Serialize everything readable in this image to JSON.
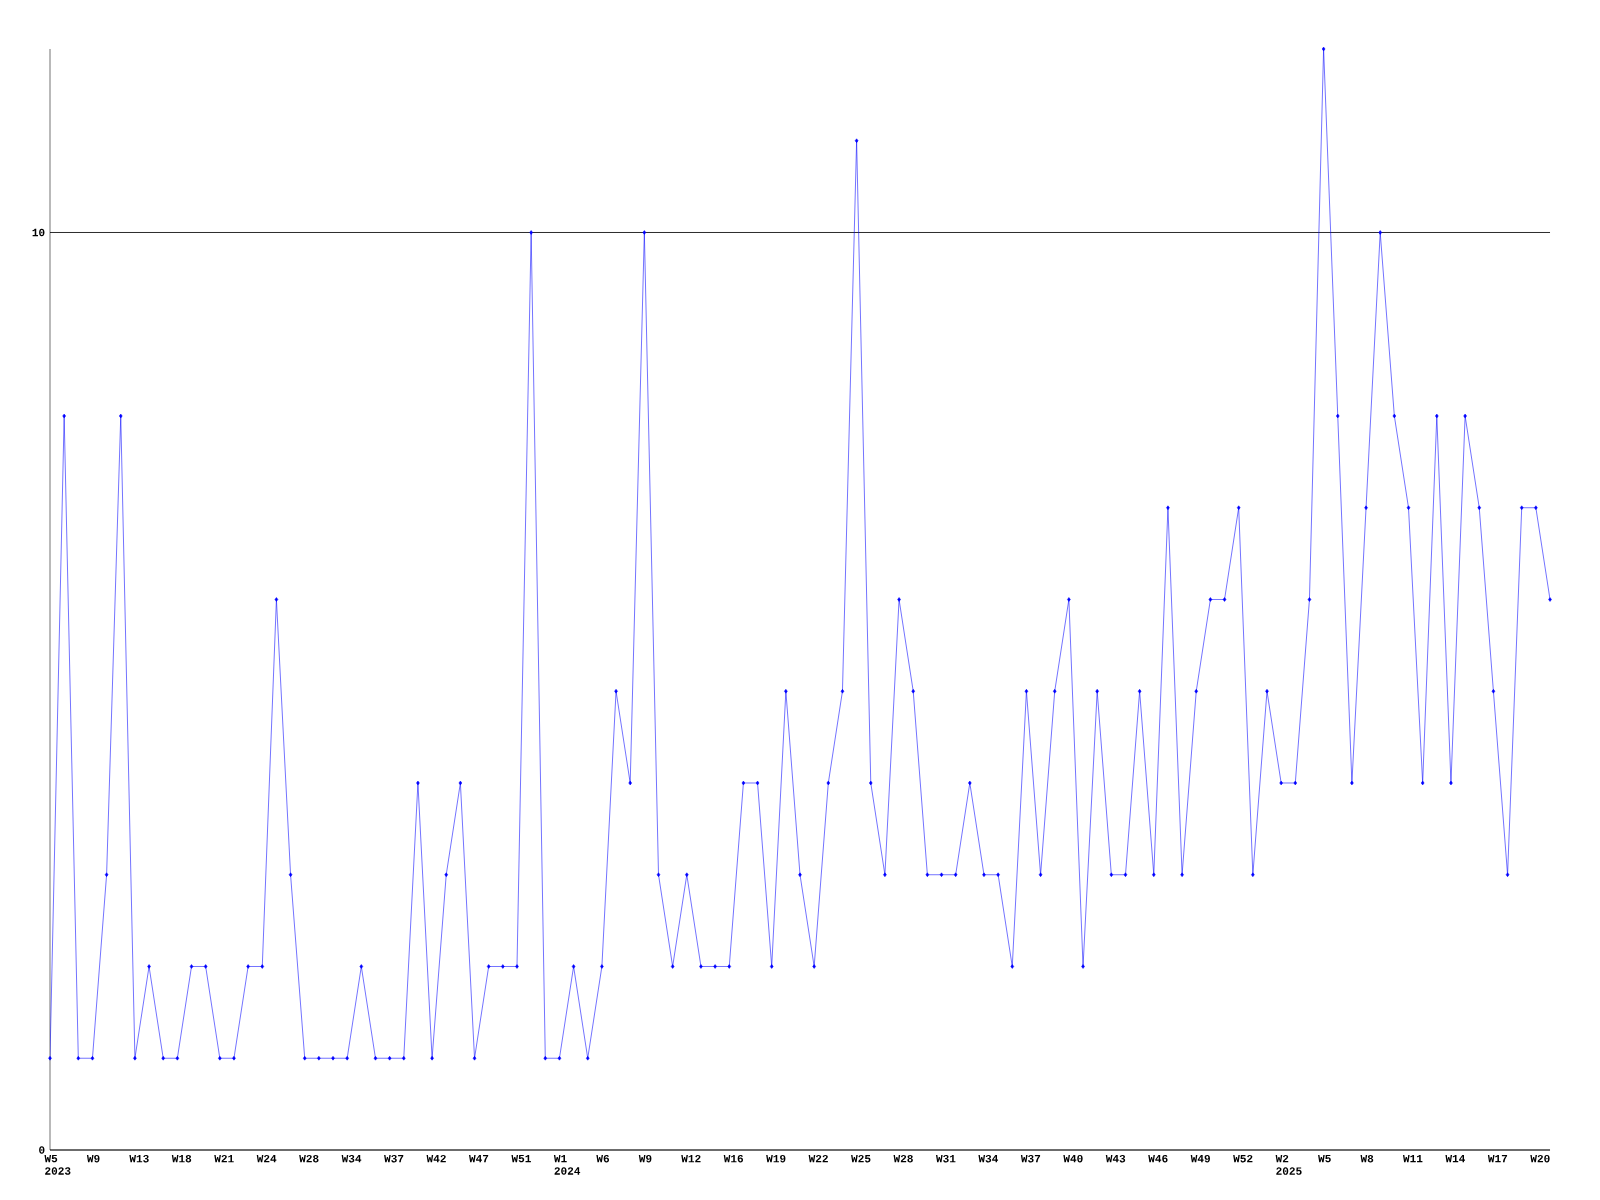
{
  "chart_data": {
    "type": "line",
    "categories": [
      "W5 2023",
      null,
      null,
      "W9",
      null,
      null,
      "W13",
      null,
      null,
      "W18",
      null,
      null,
      "W21",
      null,
      null,
      "W24",
      null,
      null,
      "W28",
      null,
      null,
      "W34",
      null,
      null,
      "W37",
      null,
      null,
      "W42",
      null,
      null,
      "W47",
      null,
      null,
      "W51",
      null,
      null,
      "W1 2024",
      null,
      null,
      "W6",
      null,
      null,
      "W9",
      null,
      null,
      "W12",
      null,
      null,
      "W16",
      null,
      null,
      "W19",
      null,
      null,
      "W22",
      null,
      null,
      "W25",
      null,
      null,
      "W28",
      null,
      null,
      "W31",
      null,
      null,
      "W34",
      null,
      null,
      "W37",
      null,
      null,
      "W40",
      null,
      null,
      "W43",
      null,
      null,
      "W46",
      null,
      null,
      "W49",
      null,
      null,
      "W52",
      null,
      null,
      "W2 2025",
      null,
      null,
      "W5",
      null,
      null,
      "W8",
      null,
      null,
      "W11",
      null,
      null,
      "W14",
      null,
      null,
      "W17",
      null,
      null,
      "W20",
      null
    ],
    "values": [
      1,
      8,
      1,
      1,
      3,
      8,
      1,
      2,
      1,
      1,
      2,
      2,
      1,
      1,
      2,
      2,
      6,
      3,
      1,
      1,
      1,
      1,
      2,
      1,
      1,
      1,
      4,
      1,
      3,
      4,
      1,
      2,
      2,
      2,
      10,
      1,
      1,
      2,
      1,
      2,
      5,
      4,
      10,
      3,
      2,
      3,
      2,
      2,
      2,
      4,
      4,
      2,
      5,
      3,
      2,
      4,
      5,
      11,
      4,
      3,
      6,
      5,
      3,
      3,
      3,
      4,
      3,
      3,
      2,
      5,
      3,
      5,
      6,
      2,
      5,
      3,
      3,
      5,
      3,
      7,
      3,
      5,
      6,
      6,
      7,
      3,
      5,
      4,
      4,
      6,
      12,
      8,
      4,
      7,
      10,
      8,
      7,
      4,
      8,
      4,
      8,
      7,
      5,
      3,
      7,
      7,
      6
    ],
    "color": "#0000ff",
    "marker": "diamond",
    "grid": "y",
    "ylim": [
      0,
      12
    ],
    "yticks": [
      0,
      10
    ]
  }
}
